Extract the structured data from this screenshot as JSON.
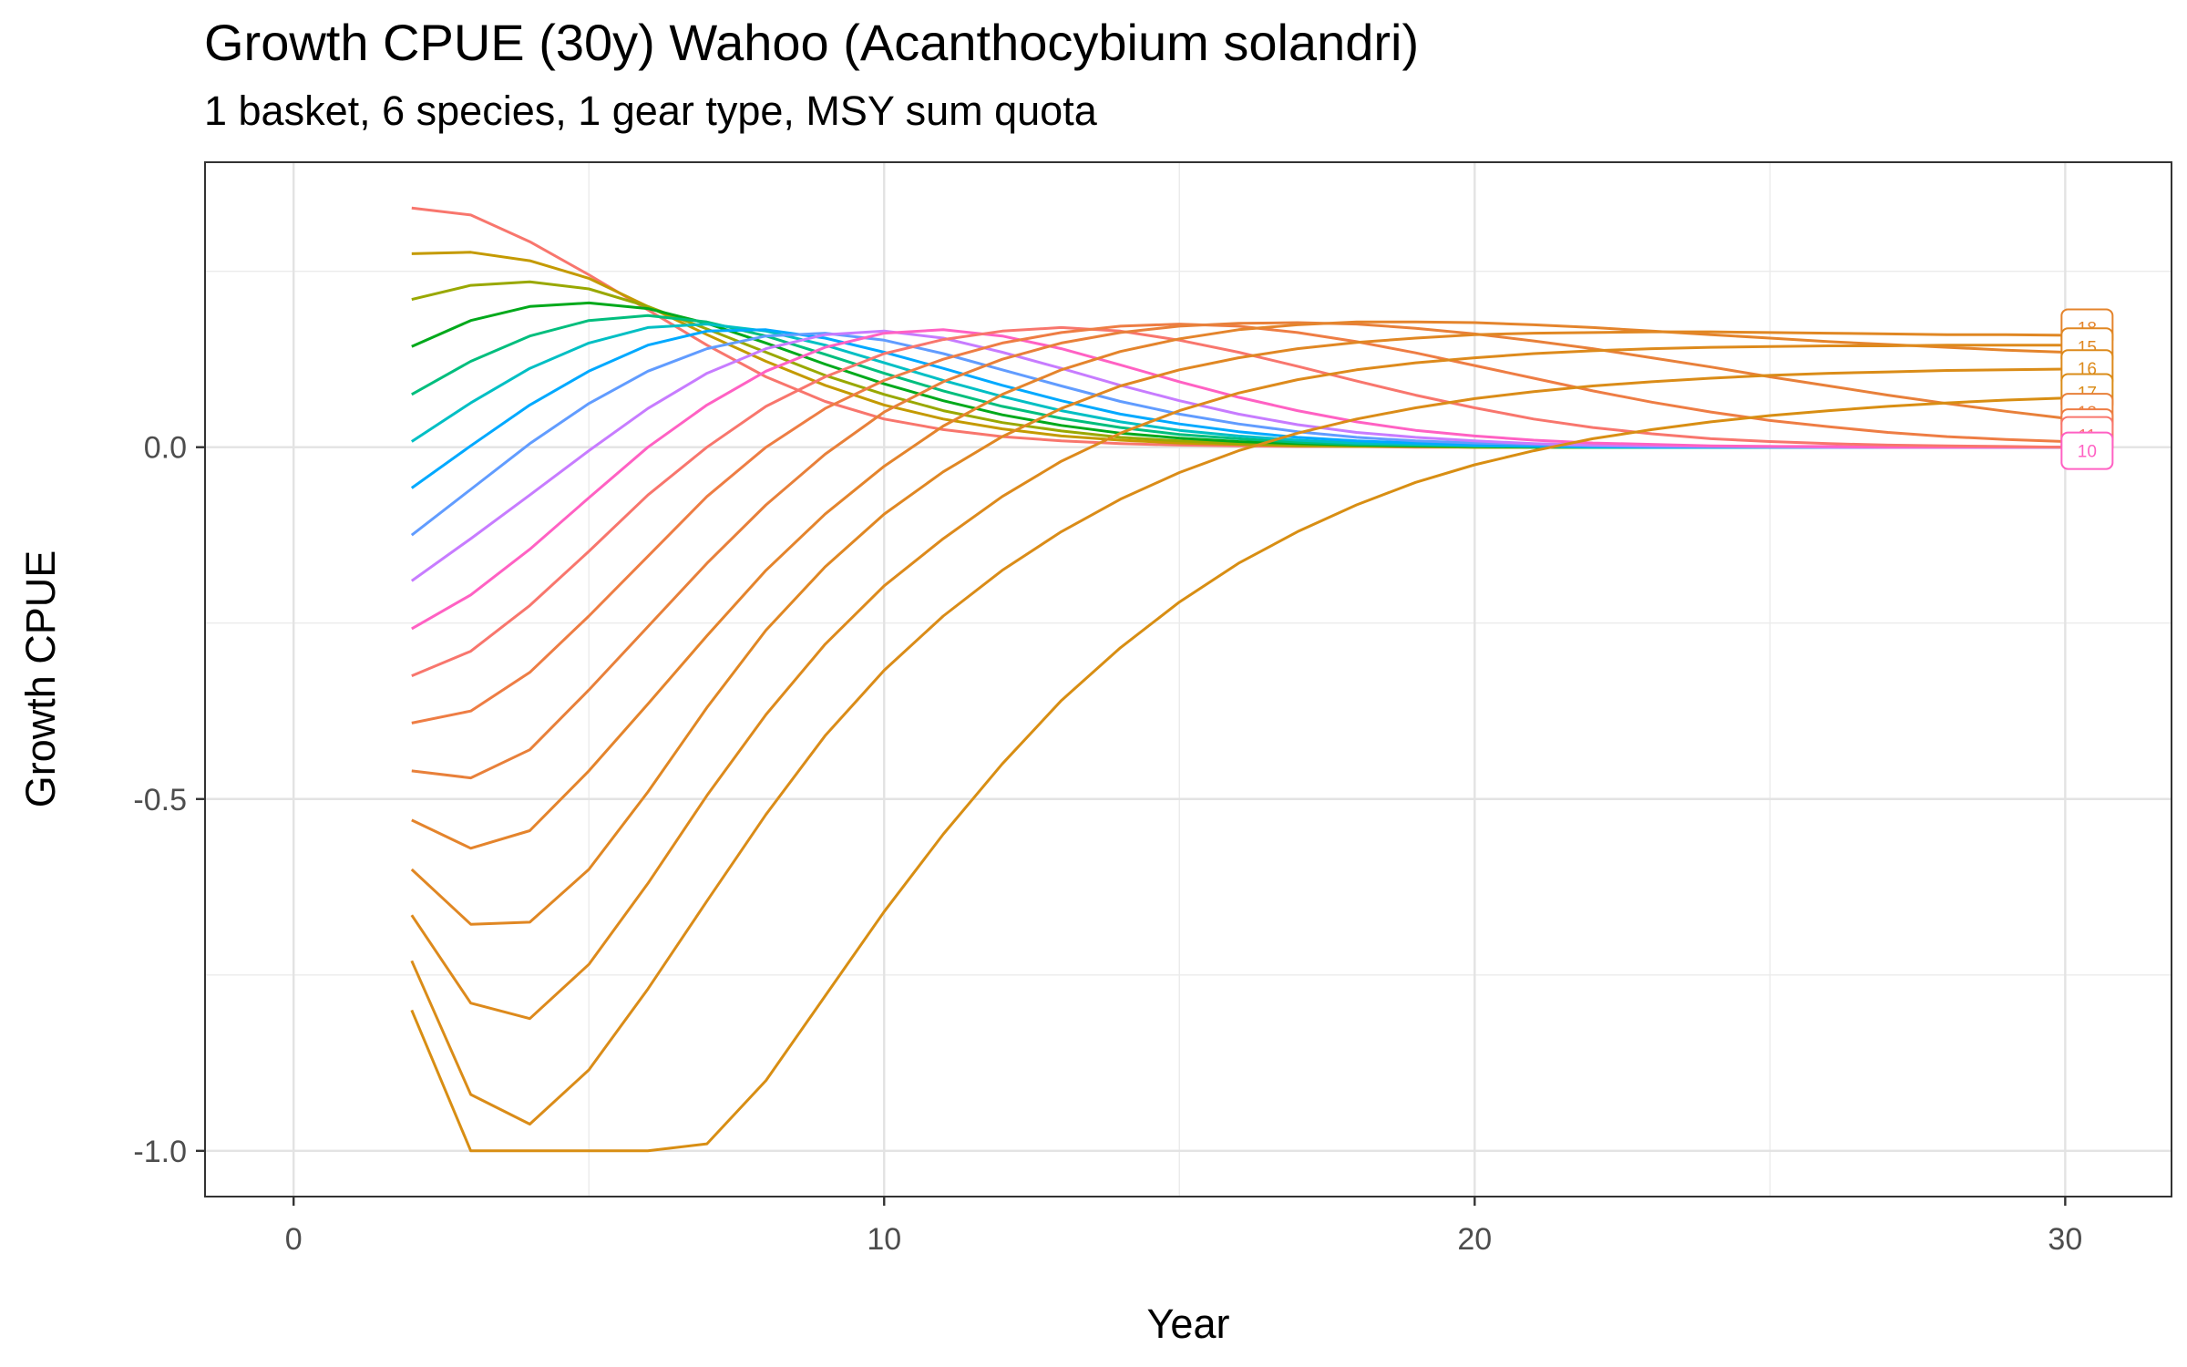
{
  "title": "Growth CPUE (30y) Wahoo (Acanthocybium solandri)",
  "subtitle": "1 basket, 6 species, 1 gear type, MSY sum quota",
  "chart_data": {
    "type": "line",
    "xlabel": "Year",
    "ylabel": "Growth CPUE",
    "xlim": [
      -1.5,
      31.8
    ],
    "ylim": [
      -1.065,
      0.405
    ],
    "x_ticks": [
      0,
      10,
      20,
      30
    ],
    "x_tick_labels": [
      "0",
      "10",
      "20",
      "30"
    ],
    "y_ticks": [
      -1.0,
      -0.5,
      0.0
    ],
    "y_tick_labels": [
      "-1.0",
      "-0.5",
      "0.0"
    ],
    "grid": true,
    "legend": "none",
    "x": [
      2,
      3,
      4,
      5,
      6,
      7,
      8,
      9,
      10,
      11,
      12,
      13,
      14,
      15,
      16,
      17,
      18,
      19,
      20,
      21,
      22,
      23,
      24,
      25,
      26,
      27,
      28,
      29,
      30
    ],
    "series": [
      {
        "color": "#F8766D",
        "values": [
          0.34,
          0.33,
          0.292,
          0.245,
          0.195,
          0.145,
          0.1,
          0.065,
          0.04,
          0.025,
          0.015,
          0.009,
          0.005,
          0.003,
          0.002,
          0.001,
          0.001,
          0.0,
          0.0,
          0.0,
          0.0,
          0.0,
          0.0,
          0.0,
          0.0,
          0.0,
          0.0,
          0.0,
          0.0
        ]
      },
      {
        "color": "#C49A00",
        "values": [
          0.275,
          0.277,
          0.265,
          0.24,
          0.2,
          0.16,
          0.122,
          0.088,
          0.06,
          0.04,
          0.026,
          0.016,
          0.01,
          0.006,
          0.004,
          0.002,
          0.001,
          0.001,
          0.0,
          0.0,
          0.0,
          0.0,
          0.0,
          0.0,
          0.0,
          0.0,
          0.0,
          0.0,
          0.0
        ]
      },
      {
        "color": "#99A800",
        "values": [
          0.21,
          0.23,
          0.235,
          0.225,
          0.2,
          0.168,
          0.135,
          0.102,
          0.075,
          0.052,
          0.035,
          0.023,
          0.014,
          0.009,
          0.005,
          0.003,
          0.002,
          0.001,
          0.0,
          0.0,
          0.0,
          0.0,
          0.0,
          0.0,
          0.0,
          0.0,
          0.0,
          0.0,
          0.0
        ]
      },
      {
        "color": "#00A91B",
        "values": [
          0.143,
          0.18,
          0.2,
          0.205,
          0.197,
          0.176,
          0.148,
          0.118,
          0.09,
          0.066,
          0.046,
          0.031,
          0.02,
          0.013,
          0.008,
          0.005,
          0.003,
          0.002,
          0.001,
          0.0,
          0.0,
          0.0,
          0.0,
          0.0,
          0.0,
          0.0,
          0.0,
          0.0,
          0.0
        ]
      },
      {
        "color": "#00BE7D",
        "values": [
          0.075,
          0.122,
          0.158,
          0.18,
          0.187,
          0.178,
          0.158,
          0.132,
          0.105,
          0.08,
          0.058,
          0.041,
          0.028,
          0.018,
          0.012,
          0.007,
          0.004,
          0.003,
          0.002,
          0.001,
          0.0,
          0.0,
          0.0,
          0.0,
          0.0,
          0.0,
          0.0,
          0.0,
          0.0
        ]
      },
      {
        "color": "#00BFC4",
        "values": [
          0.008,
          0.063,
          0.112,
          0.148,
          0.17,
          0.175,
          0.165,
          0.145,
          0.12,
          0.095,
          0.072,
          0.052,
          0.036,
          0.024,
          0.016,
          0.01,
          0.006,
          0.004,
          0.002,
          0.001,
          0.0,
          0.0,
          0.0,
          0.0,
          0.0,
          0.0,
          0.0,
          0.0,
          0.0
        ]
      },
      {
        "color": "#00A9FF",
        "values": [
          -0.058,
          0.002,
          0.06,
          0.108,
          0.145,
          0.165,
          0.167,
          0.155,
          0.135,
          0.112,
          0.088,
          0.066,
          0.047,
          0.033,
          0.022,
          0.014,
          0.009,
          0.006,
          0.003,
          0.002,
          0.001,
          0.0,
          0.0,
          0.0,
          0.0,
          0.0,
          0.0,
          0.0,
          0.0
        ]
      },
      {
        "color": "#619CFF",
        "values": [
          -0.125,
          -0.06,
          0.005,
          0.062,
          0.108,
          0.14,
          0.158,
          0.162,
          0.152,
          0.133,
          0.11,
          0.087,
          0.065,
          0.047,
          0.033,
          0.022,
          0.014,
          0.009,
          0.006,
          0.004,
          0.002,
          0.001,
          0.001,
          0.0,
          0.0,
          0.0,
          0.0,
          0.0,
          0.0
        ]
      },
      {
        "color": "#C77CFF",
        "values": [
          -0.19,
          -0.13,
          -0.068,
          -0.005,
          0.055,
          0.105,
          0.14,
          0.16,
          0.165,
          0.155,
          0.135,
          0.112,
          0.088,
          0.066,
          0.047,
          0.032,
          0.021,
          0.014,
          0.009,
          0.005,
          0.003,
          0.002,
          0.001,
          0.001,
          0.0,
          0.0,
          0.0,
          0.0,
          0.0
        ]
      },
      {
        "color": "#FF61C3",
        "values": [
          -0.258,
          -0.21,
          -0.145,
          -0.072,
          0.0,
          0.06,
          0.108,
          0.142,
          0.162,
          0.167,
          0.158,
          0.14,
          0.117,
          0.093,
          0.071,
          0.052,
          0.036,
          0.024,
          0.016,
          0.01,
          0.006,
          0.004,
          0.002,
          0.001,
          0.001,
          0.0,
          0.0,
          0.0,
          0.0
        ]
      },
      {
        "color": "#F8766D",
        "values": [
          -0.325,
          -0.29,
          -0.225,
          -0.148,
          -0.068,
          0.0,
          0.058,
          0.1,
          0.133,
          0.153,
          0.165,
          0.17,
          0.165,
          0.152,
          0.135,
          0.115,
          0.094,
          0.074,
          0.056,
          0.04,
          0.028,
          0.019,
          0.012,
          0.008,
          0.005,
          0.003,
          0.002,
          0.001,
          0.0
        ]
      },
      {
        "color": "#EE7D44",
        "values": [
          -0.392,
          -0.375,
          -0.32,
          -0.24,
          -0.155,
          -0.07,
          0.0,
          0.055,
          0.095,
          0.125,
          0.148,
          0.163,
          0.172,
          0.175,
          0.172,
          0.163,
          0.15,
          0.134,
          0.116,
          0.098,
          0.08,
          0.064,
          0.05,
          0.038,
          0.029,
          0.021,
          0.015,
          0.011,
          0.008
        ]
      },
      {
        "color": "#E8803A",
        "values": [
          -0.46,
          -0.47,
          -0.43,
          -0.345,
          -0.255,
          -0.165,
          -0.082,
          -0.01,
          0.05,
          0.093,
          0.125,
          0.148,
          0.163,
          0.172,
          0.176,
          0.177,
          0.175,
          0.169,
          0.161,
          0.151,
          0.14,
          0.127,
          0.114,
          0.1,
          0.087,
          0.074,
          0.062,
          0.051,
          0.041
        ]
      },
      {
        "color": "#E4842C",
        "values": [
          -0.53,
          -0.57,
          -0.545,
          -0.46,
          -0.365,
          -0.268,
          -0.175,
          -0.095,
          -0.027,
          0.03,
          0.075,
          0.11,
          0.136,
          0.154,
          0.167,
          0.174,
          0.178,
          0.178,
          0.177,
          0.174,
          0.17,
          0.165,
          0.16,
          0.155,
          0.15,
          0.146,
          0.142,
          0.138,
          0.135
        ]
      },
      {
        "color": "#E08723",
        "values": [
          -0.6,
          -0.678,
          -0.675,
          -0.6,
          -0.49,
          -0.37,
          -0.26,
          -0.17,
          -0.095,
          -0.035,
          0.015,
          0.055,
          0.087,
          0.11,
          0.127,
          0.14,
          0.149,
          0.155,
          0.16,
          0.162,
          0.163,
          0.164,
          0.164,
          0.163,
          0.162,
          0.161,
          0.16,
          0.16,
          0.159
        ]
      },
      {
        "color": "#DD8A1C",
        "values": [
          -0.665,
          -0.79,
          -0.812,
          -0.735,
          -0.62,
          -0.495,
          -0.38,
          -0.28,
          -0.197,
          -0.13,
          -0.07,
          -0.02,
          0.02,
          0.052,
          0.077,
          0.096,
          0.11,
          0.12,
          0.127,
          0.133,
          0.137,
          0.14,
          0.142,
          0.143,
          0.144,
          0.144,
          0.145,
          0.145,
          0.145
        ]
      },
      {
        "color": "#DA8C18",
        "values": [
          -0.73,
          -0.92,
          -0.962,
          -0.885,
          -0.77,
          -0.645,
          -0.522,
          -0.41,
          -0.317,
          -0.24,
          -0.175,
          -0.12,
          -0.074,
          -0.036,
          -0.005,
          0.02,
          0.04,
          0.056,
          0.069,
          0.079,
          0.087,
          0.093,
          0.098,
          0.102,
          0.105,
          0.107,
          0.109,
          0.11,
          0.111
        ]
      },
      {
        "color": "#D88E13",
        "values": [
          -0.8,
          -1.0,
          -1.0,
          -1.0,
          -1.0,
          -0.99,
          -0.9,
          -0.78,
          -0.66,
          -0.55,
          -0.45,
          -0.36,
          -0.285,
          -0.22,
          -0.165,
          -0.12,
          -0.082,
          -0.05,
          -0.025,
          -0.005,
          0.012,
          0.025,
          0.036,
          0.045,
          0.052,
          0.058,
          0.063,
          0.067,
          0.07
        ]
      }
    ],
    "end_labels": [
      {
        "text": "18",
        "y": 0.17,
        "color": "#E4842C"
      },
      {
        "text": "15",
        "y": 0.143,
        "color": "#E08723"
      },
      {
        "text": "16",
        "y": 0.112,
        "color": "#DD8A1C"
      },
      {
        "text": "17",
        "y": 0.078,
        "color": "#DA8C18"
      },
      {
        "text": "13",
        "y": 0.05,
        "color": "#E8803A"
      },
      {
        "text": "12",
        "y": 0.028,
        "color": "#EE7D44"
      },
      {
        "text": "11",
        "y": 0.017,
        "color": "#F8766D"
      },
      {
        "text": "10",
        "y": -0.005,
        "color": "#FF61C3"
      }
    ]
  }
}
